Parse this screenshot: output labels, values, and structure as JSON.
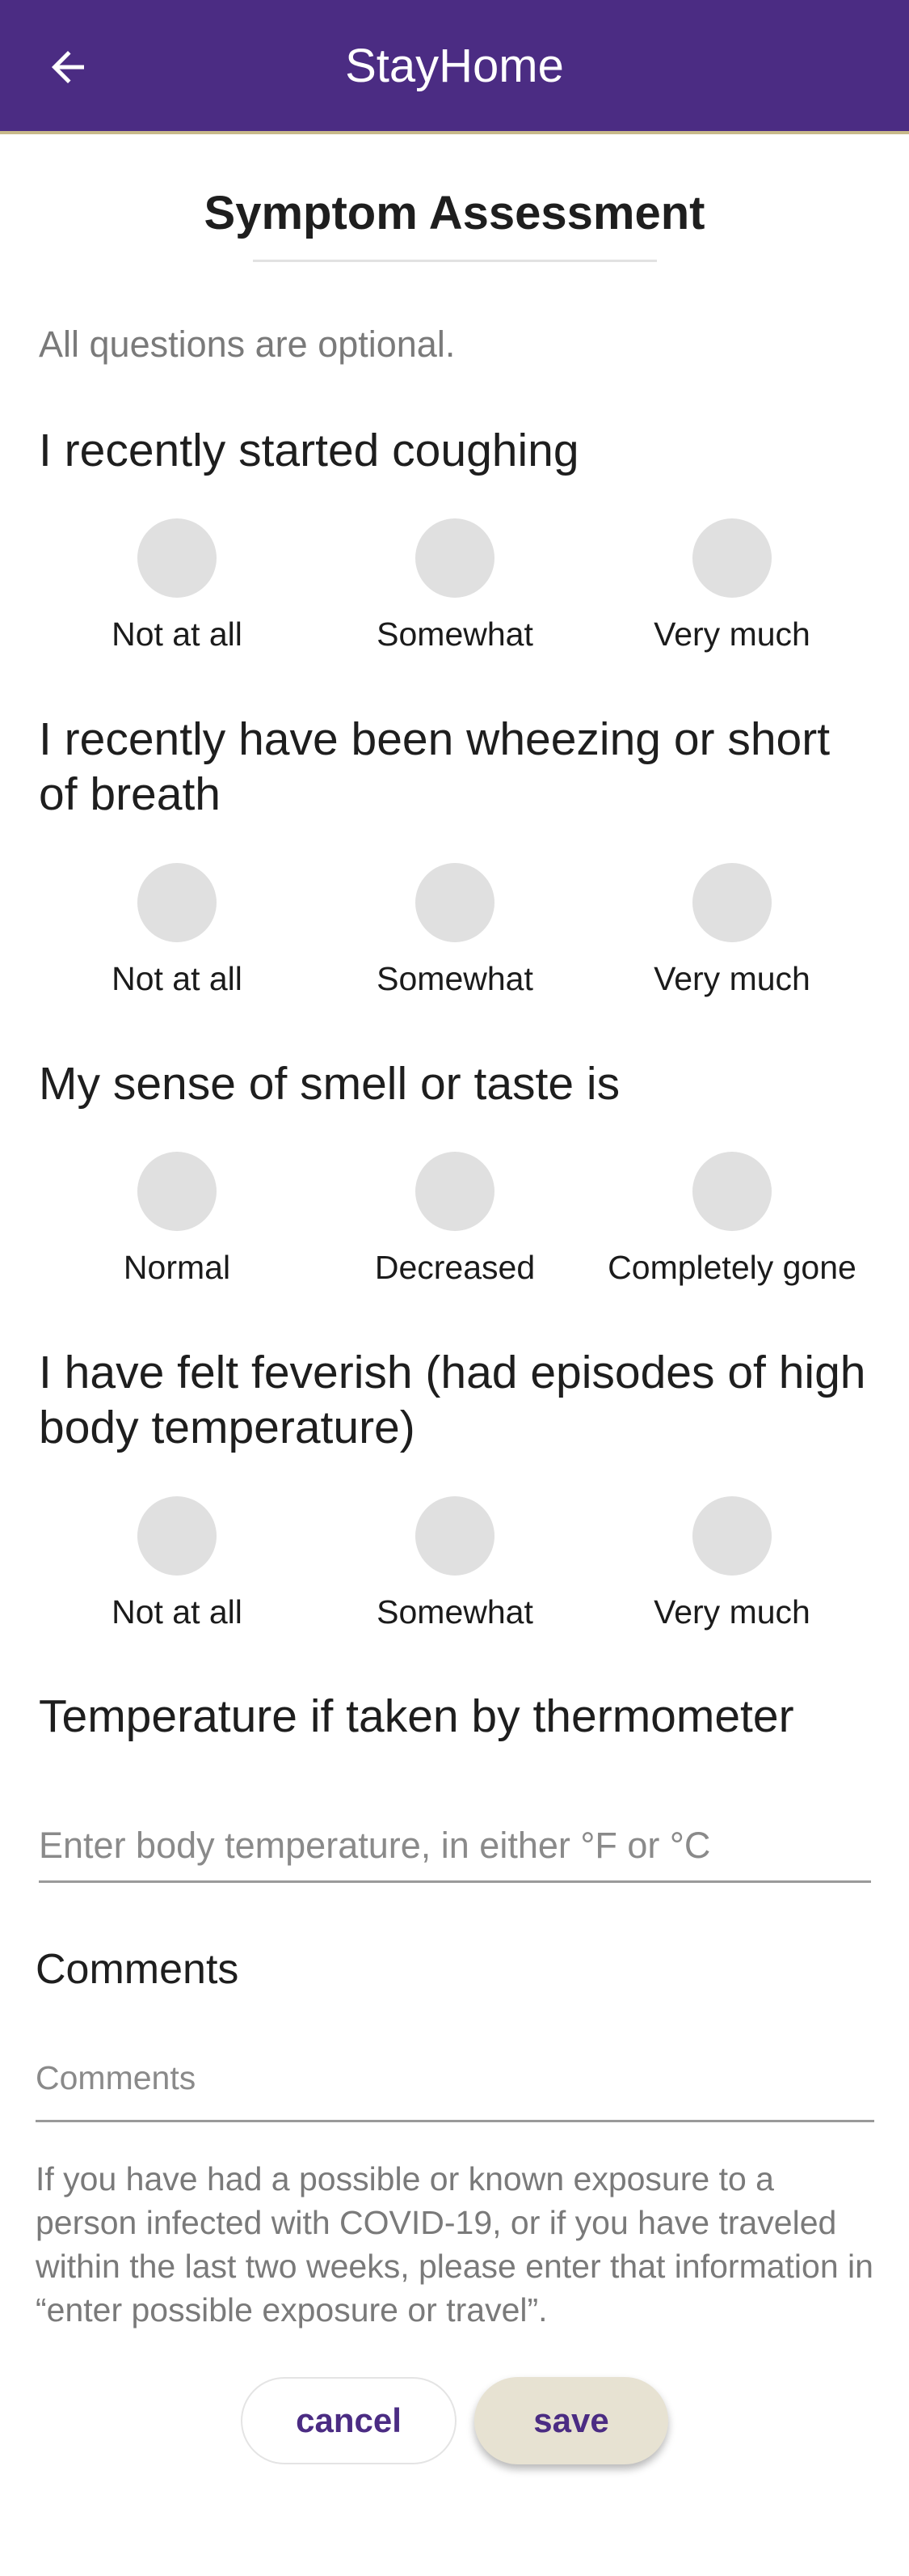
{
  "app_bar": {
    "title": "StayHome",
    "back_icon": "arrow-left-icon",
    "background_color": "#4b2c83"
  },
  "page": {
    "title": "Symptom Assessment",
    "optional_note": "All questions are optional."
  },
  "questions": [
    {
      "text": "I recently started coughing",
      "options": [
        "Not at all",
        "Somewhat",
        "Very much"
      ]
    },
    {
      "text": "I recently have been wheezing or short of breath",
      "options": [
        "Not at all",
        "Somewhat",
        "Very much"
      ]
    },
    {
      "text": "My sense of smell or taste is",
      "options": [
        "Normal",
        "Decreased",
        "Completely gone"
      ]
    },
    {
      "text": "I have felt feverish (had episodes of high body temperature)",
      "options": [
        "Not at all",
        "Somewhat",
        "Very much"
      ]
    }
  ],
  "temperature": {
    "label": "Temperature if taken by thermometer",
    "placeholder": "Enter body temperature, in either °F or °C",
    "value": ""
  },
  "comments": {
    "label": "Comments",
    "placeholder": "Comments",
    "value": ""
  },
  "exposure_note": "If you have had a possible or known exposure to a person infected with COVID-19, or if you have traveled within the last two weeks, please enter that information in “enter possible exposure or travel”.",
  "actions": {
    "cancel_label": "cancel",
    "save_label": "save"
  }
}
